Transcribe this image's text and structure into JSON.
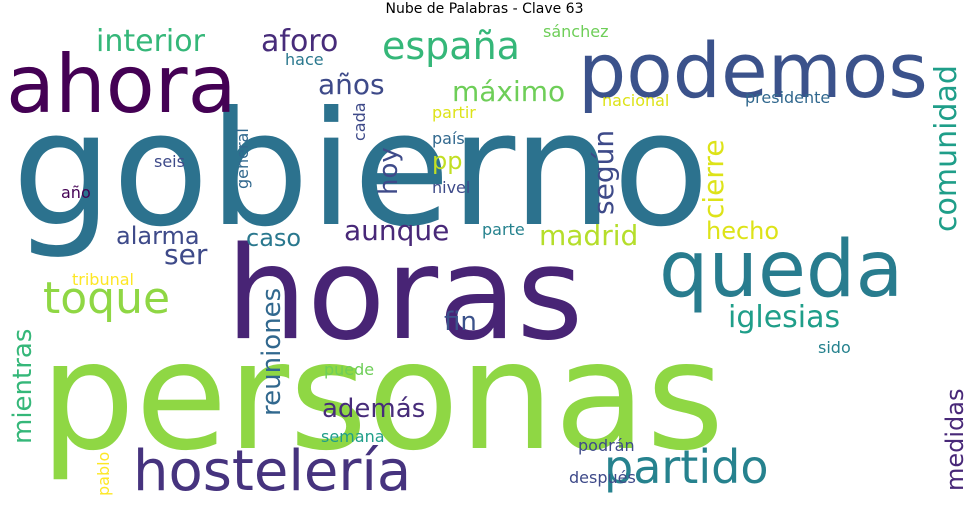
{
  "title": "Nube de Palabras - Clave 63",
  "palette": {
    "dark_purple": "#440154",
    "purple": "#482878",
    "indigo": "#3e4a89",
    "blue": "#31688e",
    "teal": "#26828e",
    "green_teal": "#1f9e89",
    "green": "#35b779",
    "lime": "#6ece58",
    "light_green": "#8fd744",
    "yellow": "#dde318",
    "bright_yellow": "#fde725"
  },
  "words": [
    {
      "text": "gobierno",
      "orientation": "horizontal",
      "color": "#2c728e"
    },
    {
      "text": "personas",
      "orientation": "horizontal",
      "color": "#8fd744"
    },
    {
      "text": "horas",
      "orientation": "horizontal",
      "color": "#482475"
    },
    {
      "text": "podemos",
      "orientation": "horizontal",
      "color": "#3b528b"
    },
    {
      "text": "ahora",
      "orientation": "horizontal",
      "color": "#440154"
    },
    {
      "text": "queda",
      "orientation": "horizontal",
      "color": "#287c8e"
    },
    {
      "text": "hostelería",
      "orientation": "horizontal",
      "color": "#46337e"
    },
    {
      "text": "partido",
      "orientation": "horizontal",
      "color": "#26828e"
    },
    {
      "text": "toque",
      "orientation": "horizontal",
      "color": "#8fd744"
    },
    {
      "text": "españa",
      "orientation": "horizontal",
      "color": "#35b779"
    },
    {
      "text": "interior",
      "orientation": "horizontal",
      "color": "#35b779"
    },
    {
      "text": "aforo",
      "orientation": "horizontal",
      "color": "#472c7a"
    },
    {
      "text": "años",
      "orientation": "horizontal",
      "color": "#3e4a89"
    },
    {
      "text": "máximo",
      "orientation": "horizontal",
      "color": "#6ece58"
    },
    {
      "text": "aunque",
      "orientation": "horizontal",
      "color": "#482878"
    },
    {
      "text": "madrid",
      "orientation": "horizontal",
      "color": "#b5de2b"
    },
    {
      "text": "caso",
      "orientation": "horizontal",
      "color": "#2a788e"
    },
    {
      "text": "alarma",
      "orientation": "horizontal",
      "color": "#3e4a89"
    },
    {
      "text": "ser",
      "orientation": "horizontal",
      "color": "#3e4a89"
    },
    {
      "text": "hecho",
      "orientation": "horizontal",
      "color": "#dde318"
    },
    {
      "text": "iglesias",
      "orientation": "horizontal",
      "color": "#1f9e89"
    },
    {
      "text": "fin",
      "orientation": "horizontal",
      "color": "#3b528b"
    },
    {
      "text": "además",
      "orientation": "horizontal",
      "color": "#472c7a"
    },
    {
      "text": "pp",
      "orientation": "horizontal",
      "color": "#c2df23"
    },
    {
      "text": "hoy",
      "orientation": "vertical",
      "color": "#3e4a89"
    },
    {
      "text": "según",
      "orientation": "vertical",
      "color": "#3e4a89"
    },
    {
      "text": "cierre",
      "orientation": "vertical",
      "color": "#dde318"
    },
    {
      "text": "comunidad",
      "orientation": "vertical",
      "color": "#1f9e89"
    },
    {
      "text": "reuniones",
      "orientation": "vertical",
      "color": "#31688e"
    },
    {
      "text": "mientras",
      "orientation": "vertical",
      "color": "#35b779"
    },
    {
      "text": "medidas",
      "orientation": "vertical",
      "color": "#482878"
    },
    {
      "text": "sánchez",
      "orientation": "horizontal",
      "color": "#6ece58"
    },
    {
      "text": "hace",
      "orientation": "horizontal",
      "color": "#2a788e"
    },
    {
      "text": "nacional",
      "orientation": "horizontal",
      "color": "#dde318"
    },
    {
      "text": "presidente",
      "orientation": "horizontal",
      "color": "#31688e"
    },
    {
      "text": "partir",
      "orientation": "horizontal",
      "color": "#dde318"
    },
    {
      "text": "país",
      "orientation": "horizontal",
      "color": "#31688e"
    },
    {
      "text": "nivel",
      "orientation": "horizontal",
      "color": "#3e4a89"
    },
    {
      "text": "parte",
      "orientation": "horizontal",
      "color": "#26828e"
    },
    {
      "text": "seis",
      "orientation": "horizontal",
      "color": "#3e4a89"
    },
    {
      "text": "año",
      "orientation": "horizontal",
      "color": "#440154"
    },
    {
      "text": "tribunal",
      "orientation": "horizontal",
      "color": "#fde725"
    },
    {
      "text": "sido",
      "orientation": "horizontal",
      "color": "#26828e"
    },
    {
      "text": "puede",
      "orientation": "horizontal",
      "color": "#6ece58"
    },
    {
      "text": "semana",
      "orientation": "horizontal",
      "color": "#1f9e89"
    },
    {
      "text": "podrán",
      "orientation": "horizontal",
      "color": "#3e4a89"
    },
    {
      "text": "después",
      "orientation": "horizontal",
      "color": "#3e4a89"
    },
    {
      "text": "cada",
      "orientation": "vertical",
      "color": "#3e4a89"
    },
    {
      "text": "general",
      "orientation": "vertical",
      "color": "#31688e"
    },
    {
      "text": "pablo",
      "orientation": "vertical",
      "color": "#fde725"
    }
  ]
}
